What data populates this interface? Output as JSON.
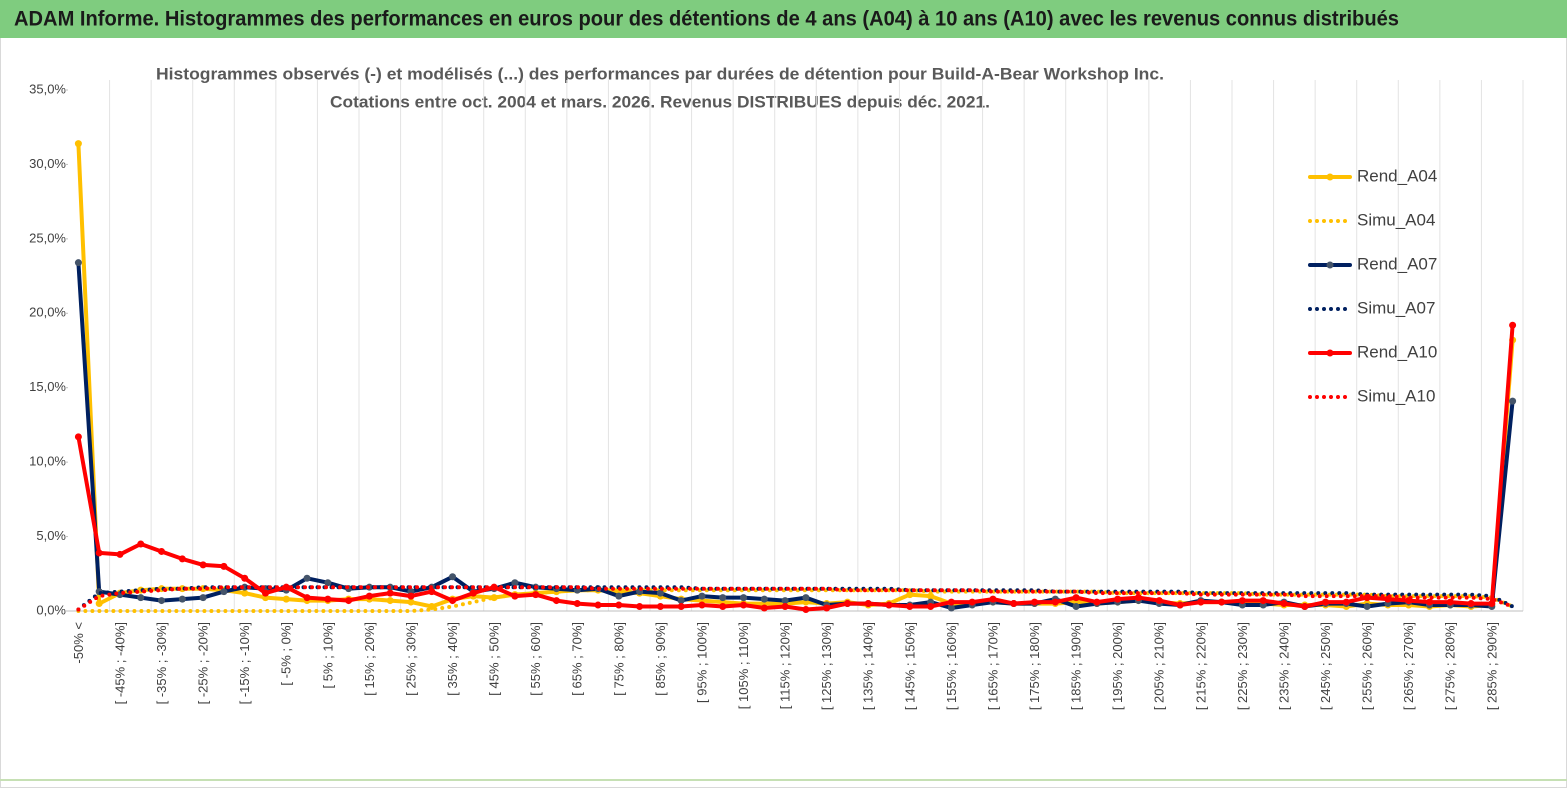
{
  "header": {
    "title": "ADAM Informe. Histogrammes des performances en euros pour des détentions de 4 ans (A04) à 10 ans (A10) avec les revenus connus distribués"
  },
  "chart_data": {
    "type": "line",
    "title": "Histogrammes observés (-) et modélisés (...) des performances par durées de détention pour Build-A-Bear Workshop Inc.",
    "subtitle": "Cotations entre oct. 2004 et mars. 2026. Revenus DISTRIBUES depuis déc. 2021.",
    "categories": [
      "-50% <",
      null,
      "[ -45% ; -40%]",
      null,
      "[ -35% ; -30%]",
      null,
      "[ -25% ; -20%]",
      null,
      "[ -15% ; -10%]",
      null,
      "[ -5% ; 0%]",
      null,
      "[ 5% ; 10%]",
      null,
      "[ 15% ; 20%]",
      null,
      "[ 25% ; 30%]",
      null,
      "[ 35% ; 40%]",
      null,
      "[ 45% ; 50%]",
      null,
      "[ 55% ; 60%]",
      null,
      "[ 65% ; 70%]",
      null,
      "[ 75% ; 80%]",
      null,
      "[ 85% ; 90%]",
      null,
      "[ 95% ; 100%]",
      null,
      "[ 105% ; 110%]",
      null,
      "[ 115% ; 120%]",
      null,
      "[ 125% ; 130%]",
      null,
      "[ 135% ; 140%]",
      null,
      "[ 145% ; 150%]",
      null,
      "[ 155% ; 160%]",
      null,
      "[ 165% ; 170%]",
      null,
      "[ 175% ; 180%]",
      null,
      "[ 185% ; 190%]",
      null,
      "[ 195% ; 200%]",
      null,
      "[ 205% ; 210%]",
      null,
      "[ 215% ; 220%]",
      null,
      "[ 225% ; 230%]",
      null,
      "[ 235% ; 240%]",
      null,
      "[ 245% ; 250%]",
      null,
      "[ 255% ; 260%]",
      null,
      "[ 265% ; 270%]",
      null,
      "[ 275% ; 280%]",
      null,
      "[ 285% ; 290%]",
      null
    ],
    "series": [
      {
        "name": "Rend_A04",
        "color": "#ffc000",
        "style": "solid",
        "values": [
          31.4,
          0.5,
          1.2,
          1.4,
          1.5,
          1.5,
          1.5,
          1.4,
          1.2,
          0.9,
          0.8,
          0.7,
          0.7,
          0.8,
          0.8,
          0.7,
          0.6,
          0.3,
          0.8,
          1.0,
          0.9,
          1.1,
          1.2,
          1.3,
          1.4,
          1.4,
          1.3,
          1.2,
          1.0,
          0.8,
          0.7,
          0.6,
          0.5,
          0.5,
          0.5,
          0.6,
          0.5,
          0.6,
          0.4,
          0.5,
          1.1,
          1.0,
          0.5,
          0.5,
          0.6,
          0.5,
          0.5,
          0.5,
          0.6,
          0.5,
          0.6,
          0.7,
          0.6,
          0.5,
          0.6,
          0.6,
          0.5,
          0.5,
          0.4,
          0.4,
          0.4,
          0.3,
          0.5,
          0.4,
          0.4,
          0.3,
          0.4,
          0.3,
          0.4,
          18.2
        ]
      },
      {
        "name": "Simu_A04",
        "color": "#ffc000",
        "style": "dotted",
        "values": [
          0.0,
          0.0,
          0.0,
          0.0,
          0.0,
          0.0,
          0.0,
          0.0,
          0.0,
          0.0,
          0.0,
          0.0,
          0.0,
          0.0,
          0.0,
          0.0,
          0.0,
          0.1,
          0.3,
          0.6,
          0.9,
          1.1,
          1.2,
          1.3,
          1.4,
          1.4,
          1.4,
          1.4,
          1.4,
          1.4,
          1.4,
          1.4,
          1.4,
          1.4,
          1.4,
          1.4,
          1.4,
          1.4,
          1.4,
          1.4,
          1.4,
          1.3,
          1.3,
          1.3,
          1.3,
          1.3,
          1.3,
          1.3,
          1.3,
          1.3,
          1.2,
          1.2,
          1.2,
          1.2,
          1.2,
          1.2,
          1.2,
          1.1,
          1.1,
          1.1,
          1.1,
          1.1,
          1.1,
          1.0,
          1.0,
          1.0,
          1.0,
          1.0,
          0.9,
          0.3
        ]
      },
      {
        "name": "Rend_A07",
        "color": "#002060",
        "marker_color": "#44546a",
        "style": "solid",
        "values": [
          23.4,
          1.3,
          1.1,
          0.9,
          0.7,
          0.8,
          0.9,
          1.3,
          1.6,
          1.5,
          1.4,
          2.2,
          1.9,
          1.5,
          1.6,
          1.6,
          1.3,
          1.6,
          2.3,
          1.3,
          1.5,
          1.9,
          1.6,
          1.5,
          1.4,
          1.5,
          1.0,
          1.3,
          1.2,
          0.7,
          1.0,
          0.9,
          0.9,
          0.8,
          0.7,
          0.9,
          0.4,
          0.5,
          0.5,
          0.4,
          0.4,
          0.6,
          0.2,
          0.4,
          0.6,
          0.5,
          0.5,
          0.8,
          0.3,
          0.5,
          0.6,
          0.7,
          0.5,
          0.4,
          0.7,
          0.6,
          0.4,
          0.4,
          0.6,
          0.3,
          0.5,
          0.5,
          0.3,
          0.5,
          0.6,
          0.4,
          0.4,
          0.4,
          0.3,
          14.1
        ]
      },
      {
        "name": "Simu_A07",
        "color": "#002060",
        "style": "dotted",
        "values": [
          0.1,
          1.2,
          1.3,
          1.4,
          1.5,
          1.5,
          1.6,
          1.6,
          1.6,
          1.6,
          1.6,
          1.6,
          1.6,
          1.6,
          1.6,
          1.6,
          1.6,
          1.6,
          1.6,
          1.6,
          1.6,
          1.6,
          1.6,
          1.6,
          1.6,
          1.6,
          1.6,
          1.6,
          1.6,
          1.6,
          1.5,
          1.5,
          1.5,
          1.5,
          1.5,
          1.5,
          1.5,
          1.5,
          1.5,
          1.5,
          1.4,
          1.4,
          1.4,
          1.4,
          1.4,
          1.4,
          1.4,
          1.3,
          1.3,
          1.3,
          1.3,
          1.3,
          1.3,
          1.3,
          1.2,
          1.2,
          1.2,
          1.2,
          1.2,
          1.2,
          1.2,
          1.2,
          1.1,
          1.1,
          1.1,
          1.1,
          1.1,
          1.1,
          1.0,
          0.3
        ]
      },
      {
        "name": "Rend_A10",
        "color": "#ff0000",
        "style": "solid",
        "values": [
          11.7,
          3.9,
          3.8,
          4.5,
          4.0,
          3.5,
          3.1,
          3.0,
          2.2,
          1.2,
          1.6,
          0.9,
          0.8,
          0.7,
          1.0,
          1.2,
          1.0,
          1.3,
          0.7,
          1.2,
          1.6,
          1.0,
          1.1,
          0.7,
          0.5,
          0.4,
          0.4,
          0.3,
          0.3,
          0.3,
          0.4,
          0.3,
          0.4,
          0.2,
          0.3,
          0.1,
          0.2,
          0.5,
          0.5,
          0.4,
          0.3,
          0.3,
          0.6,
          0.6,
          0.8,
          0.5,
          0.6,
          0.6,
          0.9,
          0.6,
          0.8,
          0.9,
          0.7,
          0.4,
          0.6,
          0.6,
          0.7,
          0.7,
          0.5,
          0.3,
          0.6,
          0.6,
          0.9,
          0.8,
          0.7,
          0.6,
          0.6,
          0.5,
          0.5,
          19.2
        ]
      },
      {
        "name": "Simu_A10",
        "color": "#ff0000",
        "style": "dotted",
        "values": [
          0.1,
          1.0,
          1.2,
          1.3,
          1.4,
          1.5,
          1.5,
          1.6,
          1.6,
          1.6,
          1.6,
          1.6,
          1.6,
          1.6,
          1.6,
          1.6,
          1.6,
          1.6,
          1.6,
          1.6,
          1.6,
          1.6,
          1.6,
          1.6,
          1.6,
          1.5,
          1.5,
          1.5,
          1.5,
          1.5,
          1.5,
          1.5,
          1.5,
          1.5,
          1.5,
          1.5,
          1.5,
          1.4,
          1.4,
          1.4,
          1.4,
          1.4,
          1.4,
          1.4,
          1.3,
          1.3,
          1.3,
          1.3,
          1.3,
          1.2,
          1.2,
          1.2,
          1.2,
          1.2,
          1.1,
          1.1,
          1.1,
          1.1,
          1.1,
          1.0,
          1.0,
          1.0,
          1.0,
          1.0,
          0.9,
          0.9,
          0.9,
          0.9,
          0.8,
          0.3
        ]
      }
    ],
    "ylim": [
      0,
      35
    ],
    "yticks": [
      {
        "value": 0,
        "label": "0,0%"
      },
      {
        "value": 5,
        "label": "5,0%"
      },
      {
        "value": 10,
        "label": "10,0%"
      },
      {
        "value": 15,
        "label": "15,0%"
      },
      {
        "value": 20,
        "label": "20,0%"
      },
      {
        "value": 25,
        "label": "25,0%"
      },
      {
        "value": 30,
        "label": "30,0%"
      },
      {
        "value": 35,
        "label": "35,0%"
      }
    ],
    "xgrid": true,
    "legend": "right"
  }
}
